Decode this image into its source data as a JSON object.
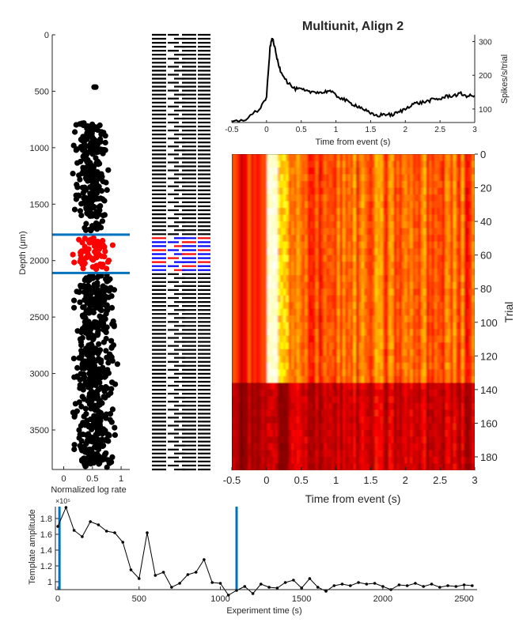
{
  "title": "Multiunit, Align 2",
  "scatter_panel": {
    "ylabel": "Depth (μm)",
    "xlabel": "Normalized log rate",
    "y_ticks": [
      "0",
      "500",
      "1000",
      "1500",
      "2000",
      "2500",
      "3000",
      "3500"
    ],
    "x_ticks": [
      "0",
      "0.5",
      "1"
    ]
  },
  "psth_panel": {
    "xlabel": "Time from event (s)",
    "ylabel": "Spikes/s/trial",
    "x_ticks": [
      "-0.5",
      "0",
      "0.5",
      "1",
      "1.5",
      "2",
      "2.5",
      "3"
    ],
    "y_ticks": [
      "100",
      "200",
      "300"
    ]
  },
  "raster_panel": {
    "xlabel": "Time from event (s)",
    "ylabel": "Trial",
    "x_ticks": [
      "-0.5",
      "0",
      "0.5",
      "1",
      "1.5",
      "2",
      "2.5",
      "3"
    ],
    "y_ticks": [
      "0",
      "20",
      "40",
      "60",
      "80",
      "100",
      "120",
      "140",
      "160",
      "180"
    ]
  },
  "amplitude_panel": {
    "xlabel": "Experiment time (s)",
    "ylabel": "Template amplitude",
    "exponent_label": "×10⁵",
    "x_ticks": [
      "0",
      "500",
      "1000",
      "1500",
      "2000",
      "2500"
    ],
    "y_ticks": [
      "1",
      "1.2",
      "1.4",
      "1.6",
      "1.8"
    ]
  },
  "colors": {
    "points": "#000000",
    "selected_points": "#ff0000",
    "selection_lines": "#0072bd",
    "probe_selected_a": "#0000ff",
    "probe_selected_b": "#ff0000"
  },
  "chart_data": [
    {
      "type": "scatter",
      "name": "depth_vs_rate",
      "xlim": [
        -0.2,
        1.15
      ],
      "ylim": [
        0,
        3850
      ],
      "y_reversed": true,
      "depth_range_selected": [
        1770,
        2110
      ],
      "point_clusters": [
        {
          "depth_range": [
            450,
            470
          ],
          "rate_range": [
            0.3,
            0.7
          ],
          "count": 2
        },
        {
          "depth_range": [
            780,
            1620
          ],
          "rate_range": [
            0.1,
            0.85
          ],
          "count": 240
        },
        {
          "depth_range": [
            1650,
            1740
          ],
          "rate_range": [
            0.25,
            0.8
          ],
          "count": 15
        },
        {
          "depth_range": [
            1790,
            2080
          ],
          "rate_range": [
            0.1,
            0.95
          ],
          "count": 70,
          "selected": true
        },
        {
          "depth_range": [
            2120,
            3840
          ],
          "rate_range": [
            0.05,
            1.0
          ],
          "count": 520
        }
      ]
    },
    {
      "type": "line",
      "name": "psth",
      "xlabel": "Time from event (s)",
      "ylabel": "Spikes/s/trial",
      "xlim": [
        -0.5,
        3
      ],
      "ylim": [
        60,
        320
      ],
      "x": [
        -0.5,
        -0.3,
        -0.1,
        0.0,
        0.05,
        0.08,
        0.1,
        0.15,
        0.2,
        0.3,
        0.4,
        0.5,
        0.6,
        0.7,
        0.8,
        0.9,
        1.0,
        1.1,
        1.2,
        1.3,
        1.4,
        1.5,
        1.6,
        1.7,
        1.8,
        1.9,
        2.0,
        2.1,
        2.2,
        2.3,
        2.4,
        2.5,
        2.6,
        2.7,
        2.8,
        2.9,
        3.0
      ],
      "y": [
        60,
        70,
        100,
        135,
        280,
        310,
        300,
        250,
        215,
        180,
        160,
        158,
        150,
        152,
        148,
        155,
        140,
        130,
        118,
        110,
        100,
        85,
        80,
        85,
        82,
        90,
        100,
        115,
        118,
        122,
        128,
        130,
        138,
        140,
        145,
        138,
        140
      ]
    },
    {
      "type": "heatmap",
      "name": "trial_raster",
      "xlabel": "Time from event (s)",
      "ylabel": "Trial",
      "xlim": [
        -0.5,
        3
      ],
      "ylim": [
        0,
        188
      ],
      "y_reversed": true,
      "colormap": "hot",
      "description_bands": {
        "onset_time": 0.0,
        "peak_window": [
          0.0,
          0.15
        ],
        "strong_trials": [
          0,
          135
        ],
        "weak_trials": [
          135,
          188
        ]
      }
    },
    {
      "type": "line",
      "name": "template_amplitude",
      "xlabel": "Experiment time (s)",
      "ylabel": "Template amplitude",
      "xlim": [
        -15,
        2580
      ],
      "ylim": [
        0.9,
        1.95
      ],
      "y_scale_exponent": 5,
      "vertical_lines": [
        10,
        1100
      ],
      "x": [
        0,
        50,
        100,
        150,
        200,
        250,
        300,
        350,
        400,
        450,
        500,
        550,
        600,
        650,
        700,
        750,
        800,
        850,
        900,
        950,
        1000,
        1050,
        1100,
        1150,
        1200,
        1250,
        1300,
        1350,
        1400,
        1450,
        1500,
        1550,
        1600,
        1650,
        1700,
        1750,
        1800,
        1850,
        1900,
        1950,
        2000,
        2050,
        2100,
        2150,
        2200,
        2250,
        2300,
        2350,
        2400,
        2450,
        2500,
        2550
      ],
      "y": [
        1.7,
        1.94,
        1.65,
        1.57,
        1.76,
        1.72,
        1.64,
        1.62,
        1.5,
        1.15,
        1.04,
        1.62,
        1.08,
        1.12,
        0.93,
        0.98,
        1.09,
        1.12,
        1.28,
        0.99,
        0.98,
        0.83,
        0.89,
        0.94,
        0.85,
        0.97,
        0.93,
        0.92,
        0.99,
        1.02,
        0.92,
        1.04,
        0.93,
        0.88,
        0.95,
        0.97,
        0.95,
        0.99,
        0.97,
        0.98,
        0.94,
        0.9,
        0.96,
        0.95,
        0.98,
        0.94,
        0.97,
        0.93,
        0.95,
        0.94,
        0.96,
        0.95
      ]
    }
  ]
}
